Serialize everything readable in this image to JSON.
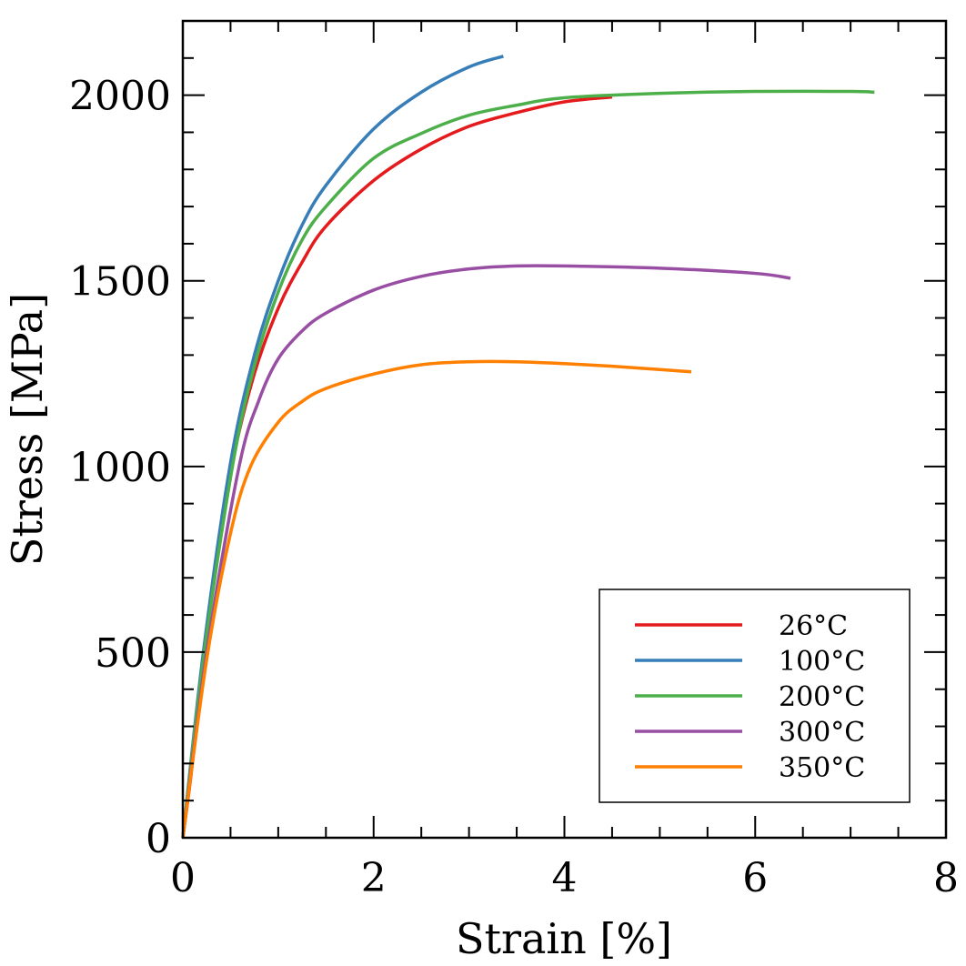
{
  "chart_data": {
    "type": "line",
    "title": "",
    "xlabel": "Strain [%]",
    "ylabel": "Stress [MPa]",
    "xlim": [
      0,
      8
    ],
    "ylim": [
      0,
      2200
    ],
    "xticks": [
      0,
      2,
      4,
      6,
      8
    ],
    "yticks": [
      0,
      500,
      1000,
      1500,
      2000
    ],
    "x_minor_step": 0.5,
    "y_minor_step": 100,
    "grid": false,
    "ticks_direction": "in",
    "legend_placement": "lower-right",
    "series": [
      {
        "name": "26°C",
        "color": "#e41a1c",
        "points": [
          [
            0,
            0
          ],
          [
            0.1,
            200
          ],
          [
            0.22,
            500
          ],
          [
            0.35,
            750
          ],
          [
            0.51,
            1000
          ],
          [
            0.75,
            1250
          ],
          [
            1,
            1426
          ],
          [
            1.25,
            1550
          ],
          [
            1.5,
            1647
          ],
          [
            2,
            1770
          ],
          [
            2.5,
            1855
          ],
          [
            3,
            1916
          ],
          [
            3.5,
            1953
          ],
          [
            4,
            1982
          ],
          [
            4.5,
            1995
          ]
        ]
      },
      {
        "name": "100°C",
        "color": "#377eb8",
        "points": [
          [
            0,
            0
          ],
          [
            0.22,
            510
          ],
          [
            0.5,
            1010
          ],
          [
            0.75,
            1300
          ],
          [
            1,
            1500
          ],
          [
            1.25,
            1650
          ],
          [
            1.5,
            1757
          ],
          [
            2,
            1909
          ],
          [
            2.5,
            2008
          ],
          [
            3,
            2076
          ],
          [
            3.36,
            2105
          ]
        ]
      },
      {
        "name": "200°C",
        "color": "#4daf4a",
        "points": [
          [
            0,
            0
          ],
          [
            0.22,
            490
          ],
          [
            0.52,
            1000
          ],
          [
            0.75,
            1270
          ],
          [
            1,
            1470
          ],
          [
            1.25,
            1610
          ],
          [
            1.5,
            1700
          ],
          [
            2,
            1830
          ],
          [
            2.5,
            1897
          ],
          [
            3,
            1946
          ],
          [
            3.5,
            1973
          ],
          [
            4,
            1993
          ],
          [
            5,
            2005
          ],
          [
            6,
            2010
          ],
          [
            7,
            2010
          ],
          [
            7.25,
            2008
          ]
        ]
      },
      {
        "name": "300°C",
        "color": "#984ea3",
        "points": [
          [
            0,
            0
          ],
          [
            0.25,
            500
          ],
          [
            0.59,
            1000
          ],
          [
            0.8,
            1180
          ],
          [
            1,
            1290
          ],
          [
            1.25,
            1365
          ],
          [
            1.5,
            1413
          ],
          [
            2,
            1475
          ],
          [
            2.5,
            1512
          ],
          [
            3,
            1532
          ],
          [
            3.5,
            1540
          ],
          [
            4,
            1540
          ],
          [
            5,
            1534
          ],
          [
            6,
            1520
          ],
          [
            6.37,
            1507
          ]
        ]
      },
      {
        "name": "350°C",
        "color": "#ff7f00",
        "points": [
          [
            0,
            0
          ],
          [
            0.25,
            480
          ],
          [
            0.5,
            820
          ],
          [
            0.71,
            1000
          ],
          [
            1,
            1119
          ],
          [
            1.25,
            1175
          ],
          [
            1.5,
            1210
          ],
          [
            2,
            1249
          ],
          [
            2.5,
            1274
          ],
          [
            3,
            1282
          ],
          [
            3.5,
            1282
          ],
          [
            4,
            1277
          ],
          [
            4.5,
            1270
          ],
          [
            5,
            1261
          ],
          [
            5.33,
            1255
          ]
        ]
      }
    ]
  }
}
